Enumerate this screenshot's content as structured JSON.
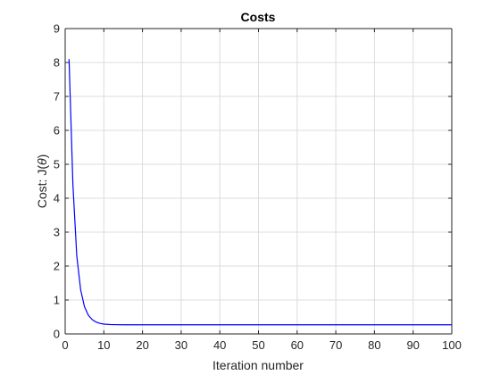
{
  "chart_data": {
    "type": "line",
    "title": "Costs",
    "xlabel": "Iteration number",
    "ylabel_prefix": "Cost: J(",
    "ylabel_symbol": "θ",
    "ylabel_suffix": ")",
    "xlim": [
      0,
      100
    ],
    "ylim": [
      0,
      9
    ],
    "xticks": [
      0,
      10,
      20,
      30,
      40,
      50,
      60,
      70,
      80,
      90,
      100
    ],
    "yticks": [
      0,
      1,
      2,
      3,
      4,
      5,
      6,
      7,
      8,
      9
    ],
    "grid": true,
    "series": [
      {
        "color": "#0000ff",
        "x": [
          1,
          2,
          3,
          4,
          5,
          6,
          7,
          8,
          9,
          10,
          12,
          15,
          20,
          30,
          40,
          50,
          60,
          70,
          80,
          90,
          100
        ],
        "y": [
          8.1,
          4.4,
          2.3,
          1.3,
          0.8,
          0.55,
          0.42,
          0.35,
          0.31,
          0.29,
          0.275,
          0.27,
          0.27,
          0.27,
          0.27,
          0.27,
          0.27,
          0.27,
          0.27,
          0.27,
          0.27
        ]
      }
    ]
  }
}
